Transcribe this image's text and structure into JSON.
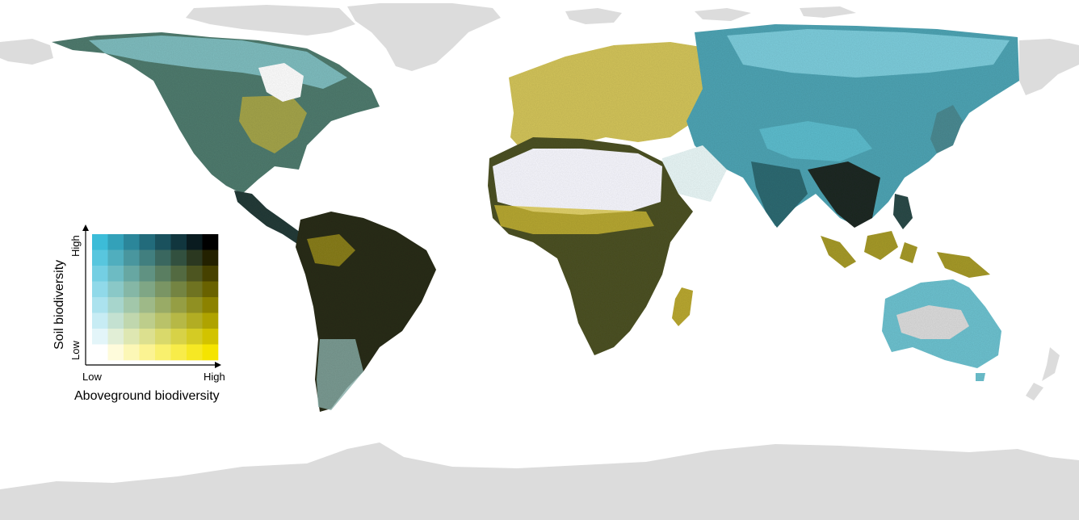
{
  "legend": {
    "x_axis_title": "Aboveground biodiversity",
    "y_axis_title": "Soil biodiversity",
    "x_low": "Low",
    "x_high": "High",
    "y_low": "Low",
    "y_high": "High",
    "grid_size": 8,
    "corner_colors": {
      "low_low": "#ffffff",
      "low_soil_high_above": "#f5e400",
      "high_soil_low_above": "#3cbcd8",
      "high_high": "#000000"
    }
  },
  "colors": {
    "land_no_data": "#dcdcdc",
    "desert_low_low": "#f7f7ff",
    "forest_high_high": "#1a1f14",
    "savanna_yellow": "#c9b52a",
    "boreal_teal": "#5ec6d8",
    "mixed_dark_teal": "#2e5b63"
  }
}
